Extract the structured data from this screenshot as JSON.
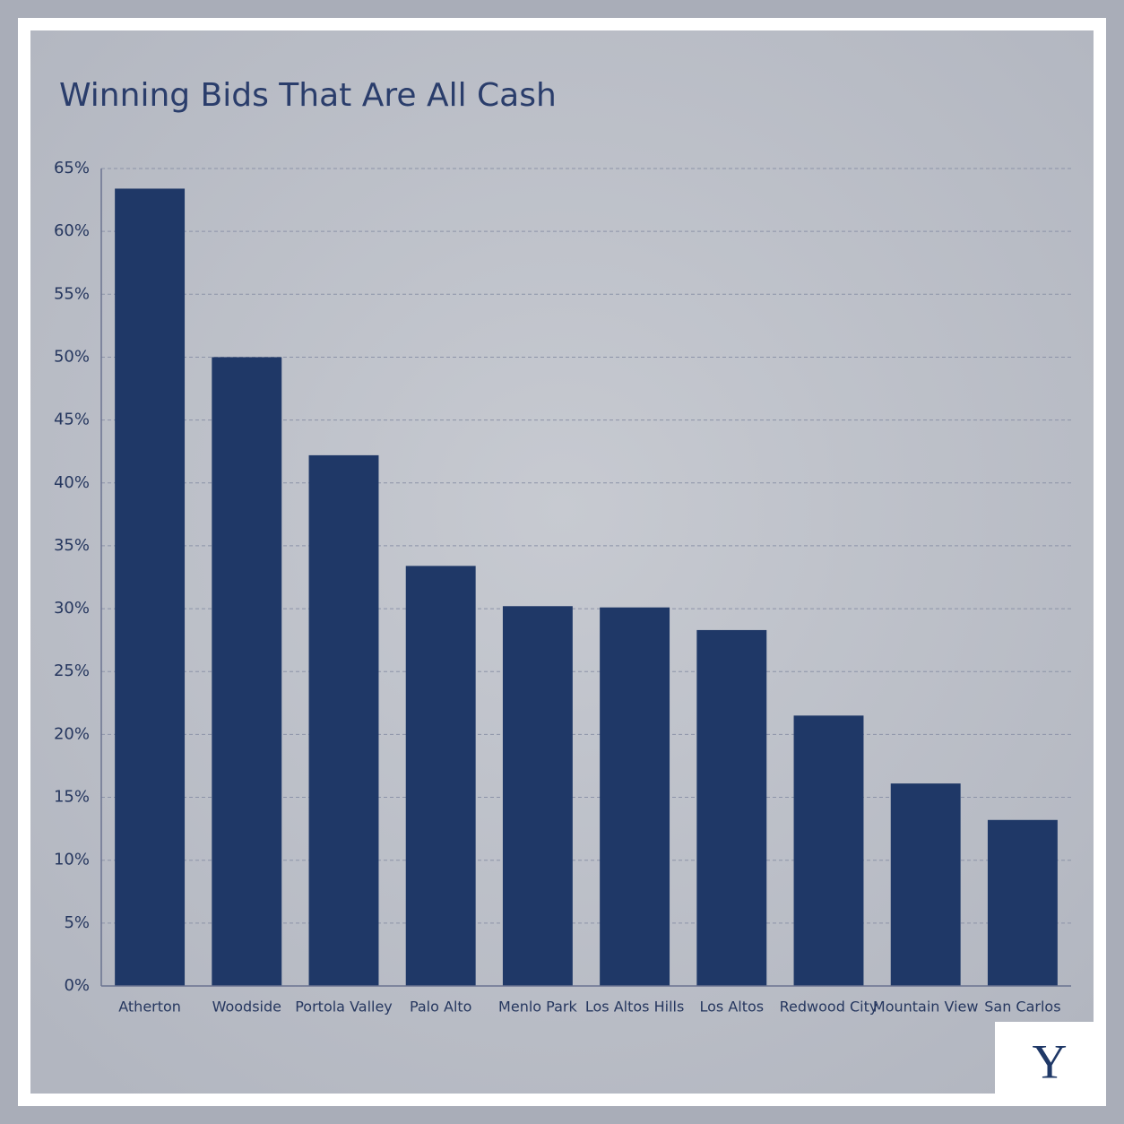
{
  "chart_data": {
    "type": "bar",
    "title": "Winning Bids That Are All Cash",
    "categories": [
      "Atherton",
      "Woodside",
      "Portola Valley",
      "Palo Alto",
      "Menlo Park",
      "Los Altos Hills",
      "Los Altos",
      "Redwood City",
      "Mountain View",
      "San Carlos"
    ],
    "values": [
      63.4,
      50,
      42.2,
      33.4,
      30.2,
      30.1,
      28.3,
      21.5,
      16.1,
      13.2
    ],
    "color": "#1f3867",
    "ylim": [
      0,
      65
    ],
    "yticks": [
      {
        "value": 0,
        "label": "0%"
      },
      {
        "value": 5,
        "label": "5%"
      },
      {
        "value": 10,
        "label": "10%"
      },
      {
        "value": 15,
        "label": "15%"
      },
      {
        "value": 20,
        "label": "20%"
      },
      {
        "value": 25,
        "label": "25%"
      },
      {
        "value": 30,
        "label": "30%"
      },
      {
        "value": 35,
        "label": "35%"
      },
      {
        "value": 40,
        "label": "40%"
      },
      {
        "value": 45,
        "label": "45%"
      },
      {
        "value": 50,
        "label": "50%"
      },
      {
        "value": 55,
        "label": "55%"
      },
      {
        "value": 60,
        "label": "60%"
      },
      {
        "value": 65,
        "label": "65%"
      }
    ],
    "grid": true
  },
  "logo": "Y"
}
